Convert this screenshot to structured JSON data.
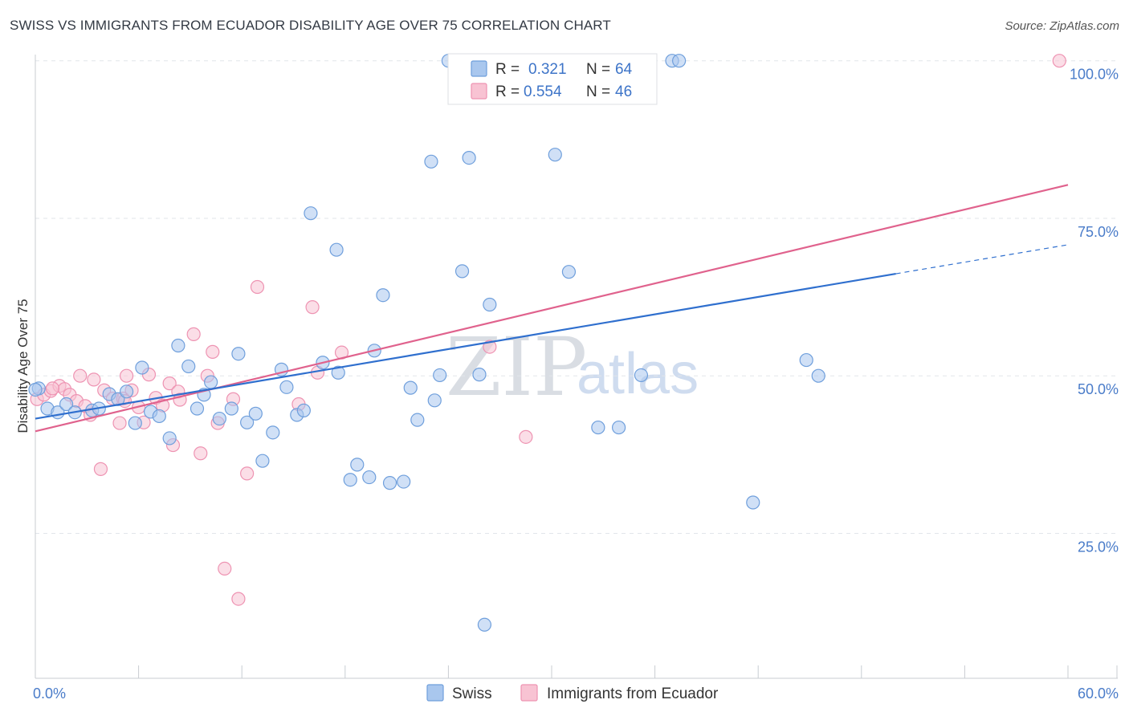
{
  "header": {
    "title": "SWISS VS IMMIGRANTS FROM ECUADOR DISABILITY AGE OVER 75 CORRELATION CHART",
    "source": "Source: ZipAtlas.com"
  },
  "watermark": {
    "zip": "ZIP",
    "atlas": "atlas"
  },
  "legend": {
    "r_label": "R =",
    "n_label": "N =",
    "rows": [
      {
        "name": "Swiss",
        "r": "0.321",
        "n": "64",
        "color": "#a9c7ee"
      },
      {
        "name": "Immigrants from Ecuador",
        "r": "0.554",
        "n": "46",
        "color": "#f6b8cc"
      }
    ]
  },
  "colors": {
    "swiss_fill": "#a9c7ee",
    "swiss_stroke": "#6f9fdc",
    "swiss_line": "#2f6fce",
    "ecuador_fill": "#f8c3d3",
    "ecuador_stroke": "#ee93b2",
    "ecuador_line": "#e0628d",
    "grid": "#e2e6ea",
    "axis": "#c8ccd2"
  },
  "chart_data": {
    "type": "scatter",
    "title": "SWISS VS IMMIGRANTS FROM ECUADOR DISABILITY AGE OVER 75 CORRELATION CHART",
    "xlabel": "",
    "ylabel": "Disability Age Over 75",
    "xlim": [
      0,
      60
    ],
    "ylim": [
      2,
      102
    ],
    "x_tick_labels": [
      {
        "value": 0,
        "label": "0.0%"
      },
      {
        "value": 60,
        "label": "60.0%"
      }
    ],
    "y_tick_labels": [
      {
        "value": 25,
        "label": "25.0%"
      },
      {
        "value": 50,
        "label": "50.0%"
      },
      {
        "value": 75,
        "label": "75.0%"
      },
      {
        "value": 100,
        "label": "100.0%"
      }
    ],
    "y_gridlines": [
      25,
      50,
      75,
      100
    ],
    "x_minor_ticks": [
      0,
      6,
      12,
      18,
      24,
      30,
      36,
      42,
      48,
      54,
      60
    ],
    "series": [
      {
        "name": "Swiss",
        "r": 0.321,
        "n": 64,
        "trend": {
          "x_start": 0,
          "y_start": 43.2,
          "x_end": 50,
          "y_end": 66.2,
          "dashed_to_x": 60,
          "dashed_to_y": 70.8
        },
        "points": [
          [
            0.2,
            48.0
          ],
          [
            0.7,
            44.8
          ],
          [
            1.3,
            44.2
          ],
          [
            1.8,
            45.5
          ],
          [
            2.3,
            44.2
          ],
          [
            3.3,
            44.5
          ],
          [
            3.7,
            44.8
          ],
          [
            4.3,
            47.1
          ],
          [
            4.8,
            46.3
          ],
          [
            5.3,
            47.5
          ],
          [
            5.8,
            42.5
          ],
          [
            6.2,
            51.3
          ],
          [
            6.7,
            44.3
          ],
          [
            7.2,
            43.6
          ],
          [
            7.8,
            40.1
          ],
          [
            8.3,
            54.8
          ],
          [
            8.9,
            51.5
          ],
          [
            9.4,
            44.8
          ],
          [
            9.8,
            47.0
          ],
          [
            10.2,
            49.0
          ],
          [
            10.7,
            43.2
          ],
          [
            11.4,
            44.8
          ],
          [
            11.8,
            53.5
          ],
          [
            12.3,
            42.6
          ],
          [
            12.8,
            44.0
          ],
          [
            13.2,
            36.5
          ],
          [
            13.8,
            41.0
          ],
          [
            14.3,
            51.0
          ],
          [
            14.6,
            48.2
          ],
          [
            15.2,
            43.8
          ],
          [
            15.6,
            44.5
          ],
          [
            16.0,
            75.8
          ],
          [
            16.7,
            52.1
          ],
          [
            17.5,
            70.0
          ],
          [
            17.6,
            50.5
          ],
          [
            18.3,
            33.5
          ],
          [
            18.7,
            35.9
          ],
          [
            19.4,
            33.9
          ],
          [
            19.7,
            54.0
          ],
          [
            20.2,
            62.8
          ],
          [
            20.6,
            33.0
          ],
          [
            21.4,
            33.2
          ],
          [
            21.8,
            48.1
          ],
          [
            22.2,
            43.0
          ],
          [
            23.0,
            84.0
          ],
          [
            23.2,
            46.1
          ],
          [
            23.5,
            50.1
          ],
          [
            24.0,
            100.0
          ],
          [
            24.8,
            66.6
          ],
          [
            25.2,
            84.6
          ],
          [
            25.8,
            50.2
          ],
          [
            26.1,
            10.5
          ],
          [
            26.4,
            61.3
          ],
          [
            30.2,
            85.1
          ],
          [
            31.0,
            66.5
          ],
          [
            32.7,
            41.8
          ],
          [
            33.9,
            41.8
          ],
          [
            35.2,
            50.1
          ],
          [
            37.0,
            100.0
          ],
          [
            37.4,
            100.0
          ],
          [
            41.7,
            29.9
          ],
          [
            44.8,
            52.5
          ],
          [
            45.5,
            50.0
          ],
          [
            0.0,
            47.8
          ]
        ]
      },
      {
        "name": "Immigrants from Ecuador",
        "r": 0.554,
        "n": 46,
        "trend": {
          "x_start": 0,
          "y_start": 41.2,
          "x_end": 60,
          "y_end": 80.3
        },
        "points": [
          [
            0.1,
            46.3
          ],
          [
            0.5,
            47.0
          ],
          [
            0.9,
            47.6
          ],
          [
            1.4,
            48.4
          ],
          [
            1.7,
            47.9
          ],
          [
            2.0,
            47.0
          ],
          [
            2.4,
            46.0
          ],
          [
            2.6,
            50.0
          ],
          [
            2.9,
            45.2
          ],
          [
            3.2,
            43.8
          ],
          [
            3.4,
            49.4
          ],
          [
            3.8,
            35.2
          ],
          [
            4.0,
            47.7
          ],
          [
            4.5,
            46.4
          ],
          [
            4.9,
            42.5
          ],
          [
            5.1,
            46.4
          ],
          [
            5.3,
            50.0
          ],
          [
            5.6,
            47.7
          ],
          [
            6.0,
            45.0
          ],
          [
            6.3,
            42.6
          ],
          [
            6.6,
            50.2
          ],
          [
            7.0,
            46.5
          ],
          [
            7.4,
            45.3
          ],
          [
            7.8,
            48.8
          ],
          [
            8.0,
            39.0
          ],
          [
            8.3,
            47.5
          ],
          [
            8.4,
            46.2
          ],
          [
            9.2,
            56.6
          ],
          [
            9.6,
            37.7
          ],
          [
            10.0,
            50.0
          ],
          [
            10.3,
            53.8
          ],
          [
            10.6,
            42.5
          ],
          [
            11.0,
            19.4
          ],
          [
            11.5,
            46.3
          ],
          [
            11.8,
            14.6
          ],
          [
            12.3,
            34.5
          ],
          [
            12.9,
            64.1
          ],
          [
            15.3,
            45.5
          ],
          [
            16.1,
            60.9
          ],
          [
            16.4,
            50.5
          ],
          [
            17.8,
            53.7
          ],
          [
            26.4,
            54.6
          ],
          [
            28.5,
            40.3
          ],
          [
            59.5,
            100.0
          ],
          [
            1.0,
            48.0
          ],
          [
            5.2,
            46.0
          ]
        ]
      }
    ]
  }
}
